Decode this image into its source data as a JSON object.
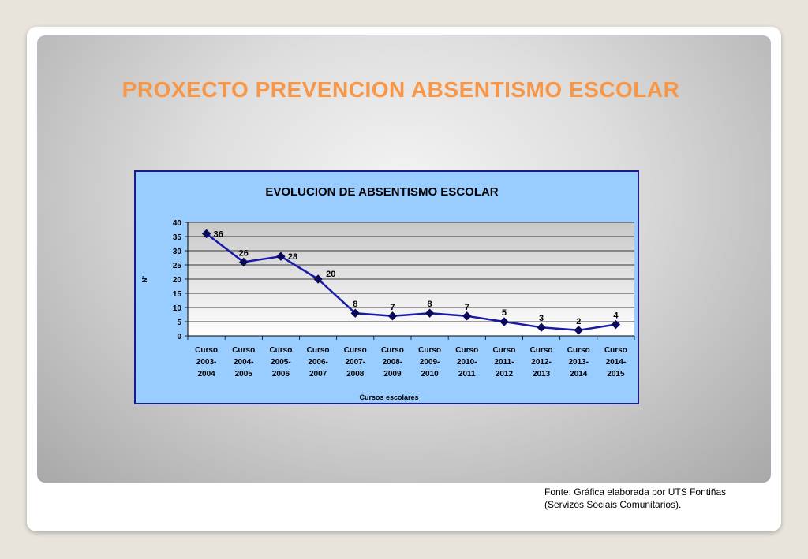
{
  "slide": {
    "title": "PROXECTO PREVENCION ABSENTISMO ESCOLAR",
    "source_line1": "Fonte: Gráfica elaborada por UTS Fontiñas",
    "source_line2": "(Servizos Sociais Comunitarios)."
  },
  "colors": {
    "title": "#f79646",
    "chart_bg": "#99ccff",
    "series": "#1a1aa8",
    "marker": "#0a0a5a"
  },
  "chart_data": {
    "type": "line",
    "title": "EVOLUCION DE ABSENTISMO ESCOLAR",
    "xlabel": "Cursos escolares",
    "ylabel": "Nº",
    "ylim": [
      0,
      40
    ],
    "yticks": [
      0,
      5,
      10,
      15,
      20,
      25,
      30,
      35,
      40
    ],
    "categories": [
      [
        "Curso",
        "2003-",
        "2004"
      ],
      [
        "Curso",
        "2004-",
        "2005"
      ],
      [
        "Curso",
        "2005-",
        "2006"
      ],
      [
        "Curso",
        "2006-",
        "2007"
      ],
      [
        "Curso",
        "2007-",
        "2008"
      ],
      [
        "Curso",
        "2008-",
        "2009"
      ],
      [
        "Curso",
        "2009-",
        "2010"
      ],
      [
        "Curso",
        "2010-",
        "2011"
      ],
      [
        "Curso",
        "2011-",
        "2012"
      ],
      [
        "Curso",
        "2012-",
        "2013"
      ],
      [
        "Curso",
        "2013-",
        "2014"
      ],
      [
        "Curso",
        "2014-",
        "2015"
      ]
    ],
    "values": [
      36,
      26,
      28,
      20,
      8,
      7,
      8,
      7,
      5,
      3,
      2,
      4
    ],
    "grid": true,
    "legend": "none"
  }
}
